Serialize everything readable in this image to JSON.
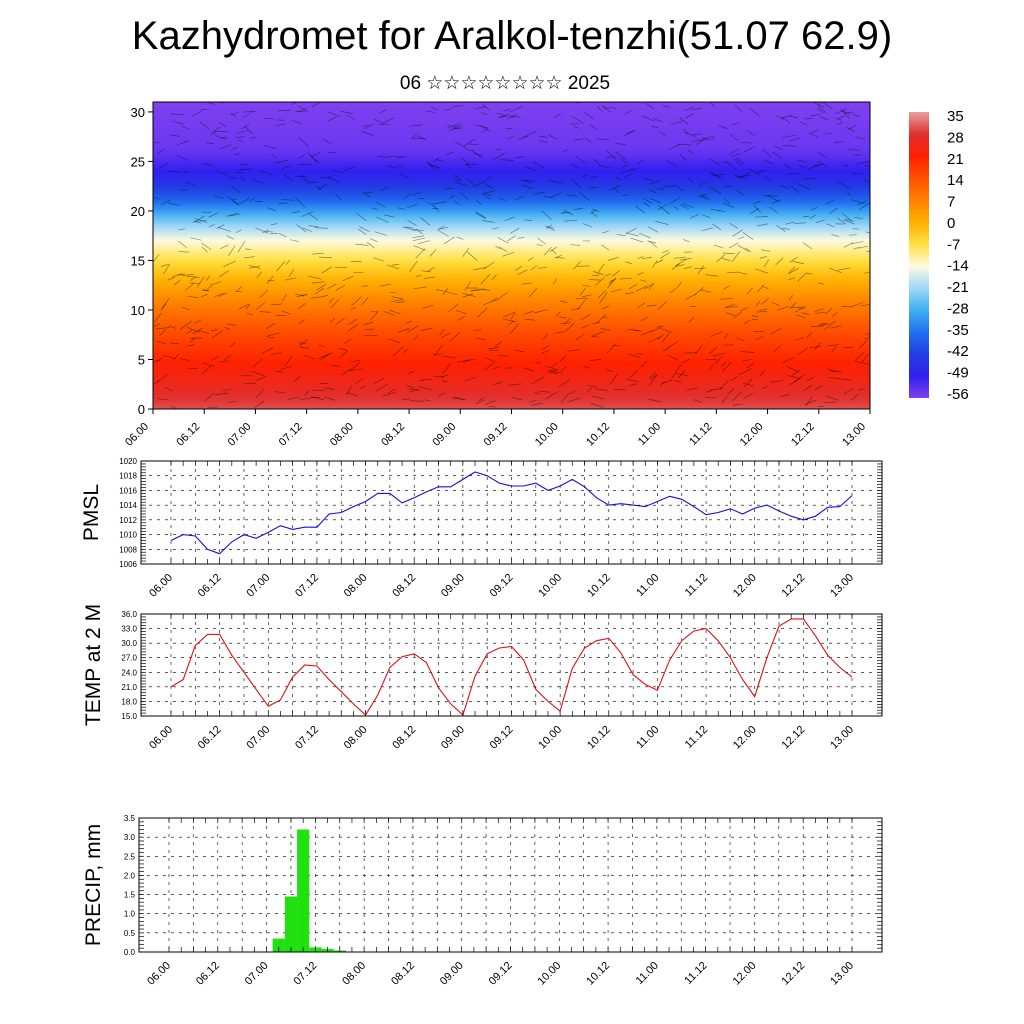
{
  "header": {
    "title": "Kazhydromet for Aralkol-tenzhi(51.07 62.9)",
    "subtitle": "06 ☆☆☆☆☆☆☆☆ 2025"
  },
  "time_labels": [
    "06.00",
    "06.12",
    "07.00",
    "07.12",
    "08.00",
    "08.12",
    "09.00",
    "09.12",
    "10.00",
    "10.12",
    "11.00",
    "11.12",
    "12.00",
    "12.12",
    "13.00"
  ],
  "chart_data": [
    {
      "type": "heatmap",
      "title": "",
      "y_ticks": [
        0,
        5,
        10,
        15,
        20,
        25,
        30
      ],
      "ylim": [
        0,
        31
      ],
      "colorbar_labels": [
        "35",
        "28",
        "21",
        "14",
        "7",
        "0",
        "-7",
        "-14",
        "-21",
        "-28",
        "-35",
        "-42",
        "-49",
        "-56"
      ],
      "colorbar_colors": [
        "#e8a0a0",
        "#e03030",
        "#ff2000",
        "#ff5000",
        "#ff8000",
        "#ffb000",
        "#ffe040",
        "#fffbe0",
        "#a0d8f8",
        "#40b0f0",
        "#2070f0",
        "#2040e0",
        "#3020f0",
        "#8040f0"
      ],
      "profile": {
        "heights": [
          0,
          4,
          8,
          11,
          13,
          15,
          17,
          19,
          21,
          23,
          26,
          31
        ],
        "temps": [
          30,
          22,
          14,
          6,
          0,
          -7,
          -14,
          -24,
          -36,
          -46,
          -54,
          -56
        ]
      }
    },
    {
      "type": "line",
      "ylabel": "PMSL",
      "ylim": [
        1006,
        1020
      ],
      "y_ticks": [
        "1006",
        "1008",
        "1010",
        "1012",
        "1014",
        "1016",
        "1018",
        "1020"
      ],
      "color": "#1010e0",
      "values": [
        1009.2,
        1010.0,
        1009.8,
        1008.0,
        1007.4,
        1009.0,
        1010.0,
        1009.5,
        1010.3,
        1011.2,
        1010.7,
        1011.0,
        1011.0,
        1012.8,
        1013.0,
        1013.8,
        1014.5,
        1015.6,
        1015.6,
        1014.3,
        1015.0,
        1015.8,
        1016.5,
        1016.5,
        1017.5,
        1018.5,
        1018.0,
        1017.0,
        1016.6,
        1016.6,
        1017.0,
        1016.0,
        1016.6,
        1017.5,
        1016.5,
        1015.0,
        1014.0,
        1014.2,
        1014.0,
        1013.8,
        1014.5,
        1015.2,
        1014.8,
        1013.8,
        1012.7,
        1013.0,
        1013.5,
        1012.8,
        1013.6,
        1014.0,
        1013.2,
        1012.5,
        1012.0,
        1012.5,
        1013.7,
        1013.8,
        1015.3
      ]
    },
    {
      "type": "line",
      "ylabel": "TEMP at 2 M",
      "ylim": [
        15.0,
        36.0
      ],
      "y_ticks": [
        "15.0",
        "18.0",
        "21.0",
        "24.0",
        "27.0",
        "30.0",
        "33.0",
        "36.0"
      ],
      "color": "#e01010",
      "values": [
        21.0,
        22.5,
        29.5,
        31.8,
        31.8,
        27.5,
        24.0,
        20.5,
        17.0,
        18.3,
        23.0,
        25.5,
        25.3,
        22.5,
        20.0,
        17.5,
        15.2,
        19.3,
        25.0,
        27.2,
        27.8,
        26.0,
        20.8,
        17.5,
        15.2,
        23.2,
        27.8,
        29.0,
        29.3,
        26.5,
        20.5,
        18.0,
        16.0,
        24.8,
        29.0,
        30.5,
        31.0,
        28.0,
        23.5,
        21.5,
        20.3,
        26.5,
        30.5,
        32.5,
        33.0,
        30.5,
        27.0,
        22.5,
        19.0,
        27.0,
        33.5,
        35.0,
        35.0,
        31.5,
        27.5,
        25.0,
        23.0
      ]
    },
    {
      "type": "bar",
      "ylabel": "PRECIP, mm",
      "ylim": [
        0.0,
        3.5
      ],
      "y_ticks": [
        "0.0",
        "0.5",
        "1.0",
        "1.5",
        "2.0",
        "2.5",
        "3.0",
        "3.5"
      ],
      "color": "#20e010",
      "values": [
        0,
        0,
        0,
        0,
        0,
        0,
        0,
        0,
        0,
        0.35,
        1.45,
        3.2,
        0.12,
        0.08,
        0.04,
        0,
        0,
        0,
        0,
        0,
        0,
        0,
        0,
        0,
        0,
        0,
        0,
        0,
        0,
        0,
        0,
        0,
        0,
        0,
        0,
        0,
        0,
        0,
        0,
        0,
        0,
        0,
        0,
        0,
        0,
        0,
        0,
        0,
        0,
        0,
        0,
        0,
        0,
        0,
        0,
        0,
        0
      ]
    }
  ]
}
